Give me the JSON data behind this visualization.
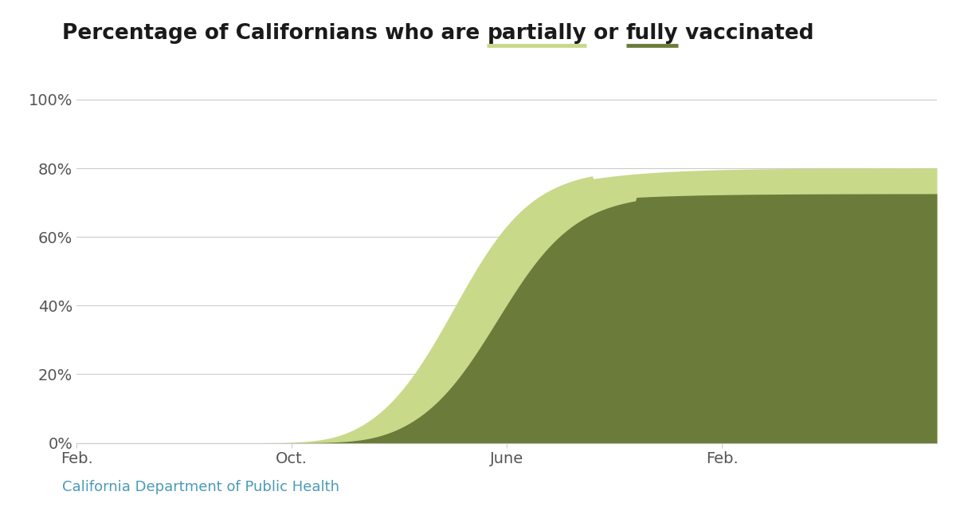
{
  "partially_color": "#c8d98a",
  "fully_color": "#6b7c3a",
  "background_color": "#ffffff",
  "grid_color": "#cccccc",
  "tick_label_color": "#555555",
  "source_text": "California Department of Public Health",
  "source_color": "#4a9ab5",
  "xlabels": [
    "Feb.",
    "Oct.",
    "June",
    "Feb."
  ],
  "xtick_positions": [
    0.0,
    0.25,
    0.5,
    0.75
  ],
  "ylim": [
    0,
    105
  ],
  "yticks": [
    0,
    20,
    40,
    60,
    80,
    100
  ],
  "ytick_labels": [
    "0%",
    "20%",
    "40%",
    "60%",
    "80%",
    "100%"
  ],
  "final_partial": 80.1,
  "final_full": 72.6,
  "title_prefix": "Percentage of Californians who are ",
  "title_partial": "partially",
  "title_mid": " or ",
  "title_fully": "fully",
  "title_suffix": " vaccinated",
  "title_fontsize": 19,
  "tick_fontsize": 14,
  "source_fontsize": 13
}
